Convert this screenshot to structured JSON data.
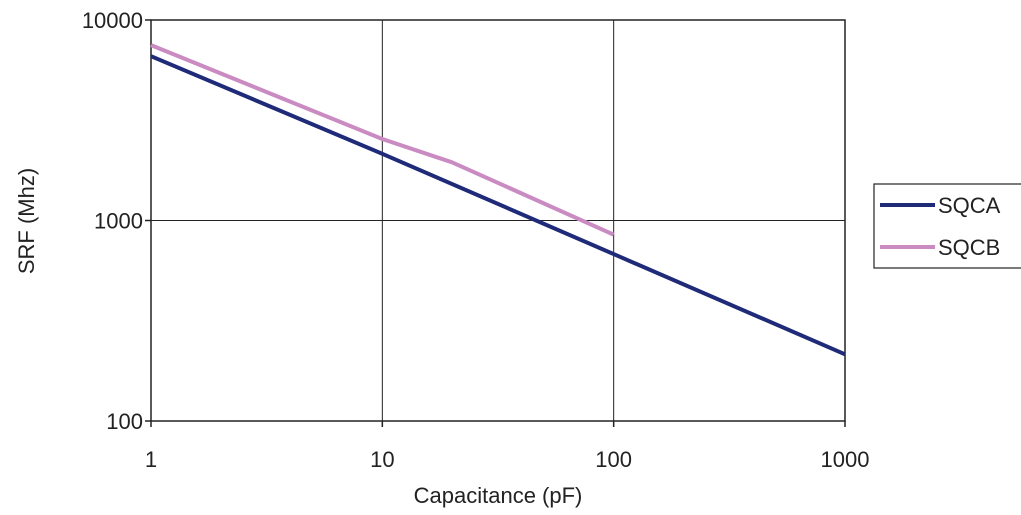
{
  "chart_data": {
    "type": "line",
    "title": "",
    "xlabel": "Capacitance (pF)",
    "ylabel": "SRF (Mhz)",
    "x_scale": "log",
    "y_scale": "log",
    "xlim": [
      1,
      1000
    ],
    "ylim": [
      100,
      10000
    ],
    "x_ticks": [
      1,
      10,
      100,
      1000
    ],
    "y_ticks": [
      100,
      1000,
      10000
    ],
    "x_tick_labels": [
      "1",
      "10",
      "100",
      "1000"
    ],
    "y_tick_labels": [
      "100",
      "1000",
      "10000"
    ],
    "grid": true,
    "legend_position": "right",
    "series": [
      {
        "name": "SQCA",
        "color": "#1f2a78",
        "points": [
          [
            1,
            6600
          ],
          [
            10,
            2150
          ],
          [
            100,
            680
          ],
          [
            1000,
            215
          ]
        ]
      },
      {
        "name": "SQCB",
        "color": "#c98bc2",
        "points": [
          [
            1,
            7500
          ],
          [
            10,
            2550
          ],
          [
            20,
            1950
          ],
          [
            100,
            850
          ]
        ]
      }
    ]
  }
}
